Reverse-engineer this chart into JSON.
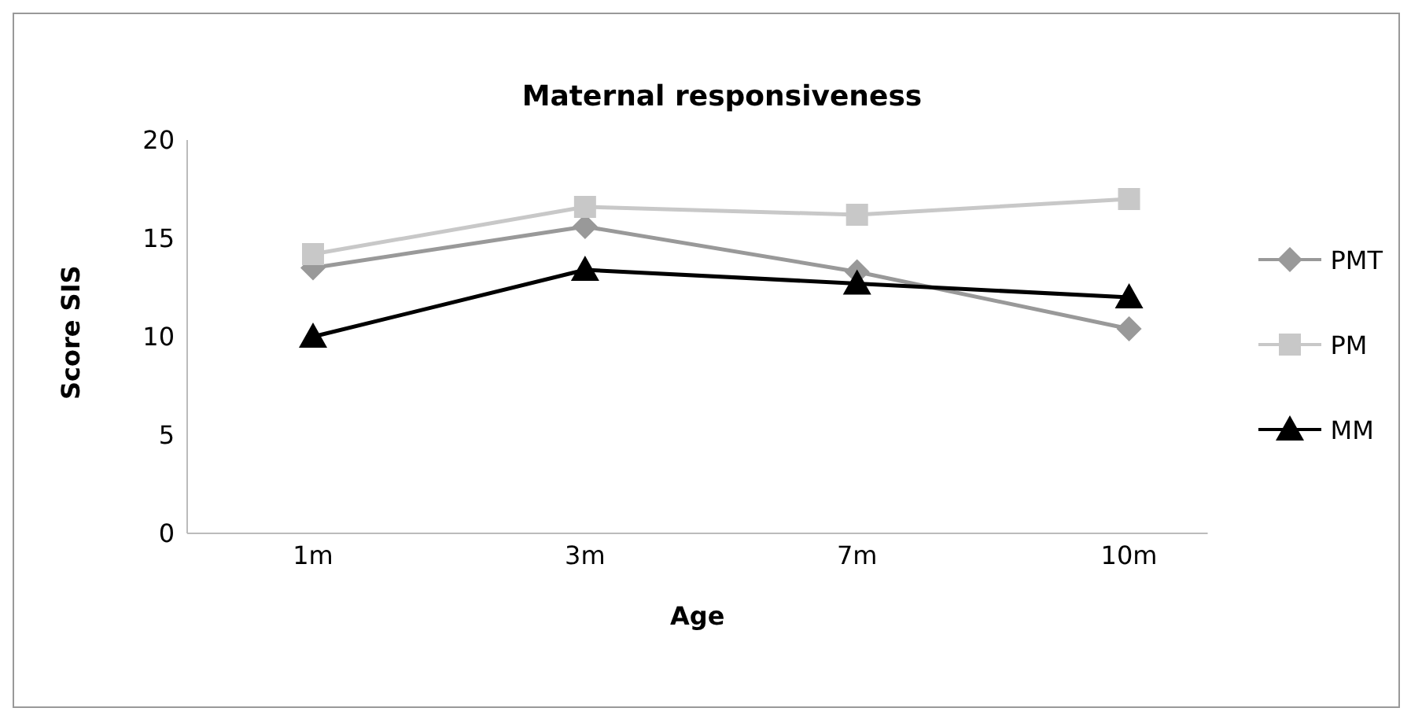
{
  "chart_data": {
    "type": "line",
    "title": "Maternal responsiveness",
    "xlabel": "Age",
    "ylabel": "Score SIS",
    "categories": [
      "1m",
      "3m",
      "7m",
      "10m"
    ],
    "series": [
      {
        "name": "PMT",
        "color": "#999999",
        "marker": "diamond",
        "values": [
          13.5,
          15.6,
          13.3,
          10.4
        ]
      },
      {
        "name": "PM",
        "color": "#c8c8c8",
        "marker": "square",
        "values": [
          14.2,
          16.6,
          16.2,
          17.0
        ]
      },
      {
        "name": "MM",
        "color": "#000000",
        "marker": "triangle",
        "values": [
          10.0,
          13.4,
          12.7,
          12.0
        ]
      }
    ],
    "ylim": [
      0,
      20
    ],
    "yticks": [
      0,
      5,
      10,
      15,
      20
    ],
    "grid": false,
    "legend": "right"
  }
}
